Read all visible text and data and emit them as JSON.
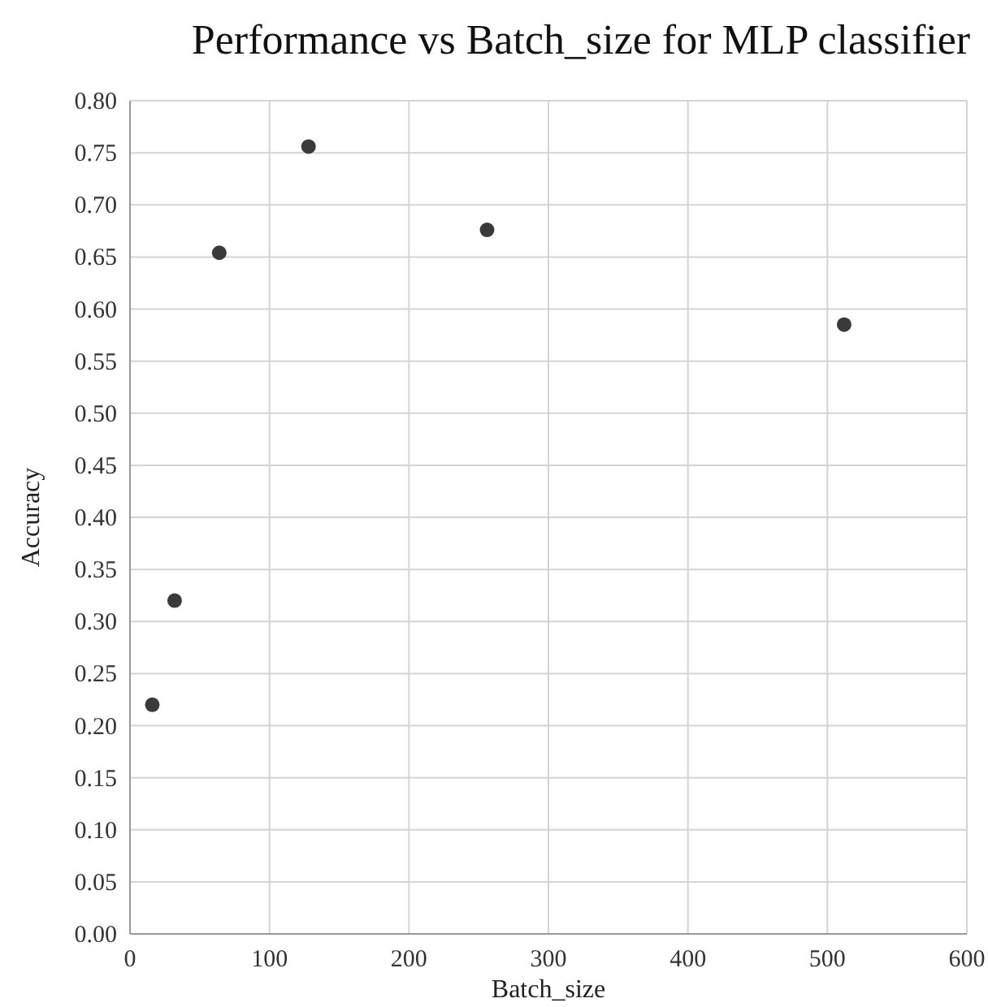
{
  "chart_data": {
    "type": "scatter",
    "title": "Performance vs Batch_size for MLP classifier",
    "xlabel": "Batch_size",
    "ylabel": "Accuracy",
    "x": [
      16,
      32,
      64,
      128,
      256,
      512
    ],
    "series": [
      {
        "color": "#3a3a3a",
        "values": [
          0.22,
          0.32,
          0.654,
          0.756,
          0.676,
          0.585
        ]
      }
    ],
    "xlim": [
      0,
      600
    ],
    "xticks": [
      0,
      100,
      200,
      300,
      400,
      500,
      600
    ],
    "ylim": [
      0,
      0.8
    ],
    "yticks": [
      {
        "value": 0,
        "label": "0.00"
      },
      {
        "value": 0.05,
        "label": "0.05"
      },
      {
        "value": 0.1,
        "label": "0.10"
      },
      {
        "value": 0.15,
        "label": "0.15"
      },
      {
        "value": 0.2,
        "label": "0.20"
      },
      {
        "value": 0.25,
        "label": "0.25"
      },
      {
        "value": 0.3,
        "label": "0.30"
      },
      {
        "value": 0.35,
        "label": "0.35"
      },
      {
        "value": 0.4,
        "label": "0.40"
      },
      {
        "value": 0.45,
        "label": "0.45"
      },
      {
        "value": 0.5,
        "label": "0.50"
      },
      {
        "value": 0.55,
        "label": "0.55"
      },
      {
        "value": 0.6,
        "label": "0.60"
      },
      {
        "value": 0.65,
        "label": "0.65"
      },
      {
        "value": 0.7,
        "label": "0.70"
      },
      {
        "value": 0.75,
        "label": "0.75"
      },
      {
        "value": 0.8,
        "label": "0.80"
      }
    ],
    "grid": true,
    "marker": "circle"
  }
}
